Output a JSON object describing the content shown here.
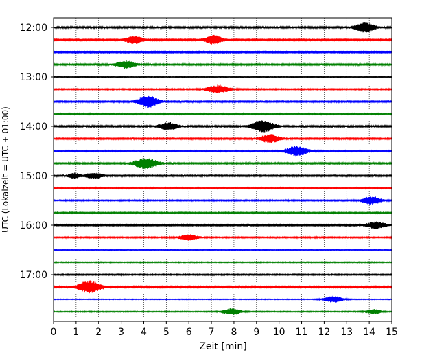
{
  "chart_data": {
    "type": "line",
    "title": "",
    "xlabel": "Zeit  [min]",
    "ylabel": "UTC (Lokalzeit = UTC + 01:00)",
    "xlim": [
      0,
      15
    ],
    "x_ticks": [
      "0",
      "1",
      "2",
      "3",
      "4",
      "5",
      "6",
      "7",
      "8",
      "9",
      "10",
      "11",
      "12",
      "13",
      "14",
      "15"
    ],
    "y_ticks": [
      "12:00",
      "13:00",
      "14:00",
      "15:00",
      "16:00",
      "17:00"
    ],
    "trace_interval_min": 15,
    "grid": "vertical-dotted",
    "series_colors": [
      "#000000",
      "#ff0000",
      "#0000ff",
      "#008000"
    ],
    "series": [
      {
        "name": "12:00",
        "color": "#000000",
        "base_amp": 0.35,
        "events": [
          {
            "t": 13.8,
            "amp": 2.2,
            "dur": 0.5
          }
        ]
      },
      {
        "name": "12:15",
        "color": "#ff0000",
        "base_amp": 0.3,
        "events": [
          {
            "t": 3.6,
            "amp": 1.6,
            "dur": 0.5
          },
          {
            "t": 7.1,
            "amp": 1.9,
            "dur": 0.5
          }
        ]
      },
      {
        "name": "12:30",
        "color": "#0000ff",
        "base_amp": 0.3,
        "events": []
      },
      {
        "name": "12:45",
        "color": "#008000",
        "base_amp": 0.3,
        "events": [
          {
            "t": 3.2,
            "amp": 1.7,
            "dur": 0.5
          }
        ]
      },
      {
        "name": "13:00",
        "color": "#000000",
        "base_amp": 0.2,
        "events": []
      },
      {
        "name": "13:15",
        "color": "#ff0000",
        "base_amp": 0.25,
        "events": [
          {
            "t": 7.3,
            "amp": 1.8,
            "dur": 0.6
          }
        ]
      },
      {
        "name": "13:30",
        "color": "#0000ff",
        "base_amp": 0.3,
        "events": [
          {
            "t": 4.2,
            "amp": 2.6,
            "dur": 0.55
          }
        ]
      },
      {
        "name": "13:45",
        "color": "#008000",
        "base_amp": 0.25,
        "events": []
      },
      {
        "name": "14:00",
        "color": "#000000",
        "base_amp": 0.35,
        "events": [
          {
            "t": 5.1,
            "amp": 1.6,
            "dur": 0.5
          },
          {
            "t": 9.3,
            "amp": 2.6,
            "dur": 0.6
          }
        ]
      },
      {
        "name": "14:15",
        "color": "#ff0000",
        "base_amp": 0.3,
        "events": [
          {
            "t": 9.6,
            "amp": 2.0,
            "dur": 0.5
          }
        ]
      },
      {
        "name": "14:30",
        "color": "#0000ff",
        "base_amp": 0.25,
        "events": [
          {
            "t": 10.8,
            "amp": 2.2,
            "dur": 0.6
          }
        ]
      },
      {
        "name": "14:45",
        "color": "#008000",
        "base_amp": 0.3,
        "events": [
          {
            "t": 4.1,
            "amp": 2.5,
            "dur": 0.6
          }
        ]
      },
      {
        "name": "15:00",
        "color": "#000000",
        "base_amp": 0.3,
        "events": [
          {
            "t": 0.9,
            "amp": 1.3,
            "dur": 0.3
          },
          {
            "t": 1.8,
            "amp": 1.2,
            "dur": 0.5
          }
        ]
      },
      {
        "name": "15:15",
        "color": "#ff0000",
        "base_amp": 0.25,
        "events": []
      },
      {
        "name": "15:30",
        "color": "#0000ff",
        "base_amp": 0.25,
        "events": [
          {
            "t": 14.1,
            "amp": 1.8,
            "dur": 0.5
          }
        ]
      },
      {
        "name": "15:45",
        "color": "#008000",
        "base_amp": 0.25,
        "events": []
      },
      {
        "name": "16:00",
        "color": "#000000",
        "base_amp": 0.3,
        "events": [
          {
            "t": 14.3,
            "amp": 1.6,
            "dur": 0.5
          }
        ]
      },
      {
        "name": "16:15",
        "color": "#ff0000",
        "base_amp": 0.25,
        "events": [
          {
            "t": 6.0,
            "amp": 1.3,
            "dur": 0.5
          }
        ]
      },
      {
        "name": "16:30",
        "color": "#0000ff",
        "base_amp": 0.2,
        "events": []
      },
      {
        "name": "16:45",
        "color": "#008000",
        "base_amp": 0.2,
        "events": []
      },
      {
        "name": "17:00",
        "color": "#000000",
        "base_amp": 0.25,
        "events": []
      },
      {
        "name": "17:15",
        "color": "#ff0000",
        "base_amp": 0.35,
        "events": [
          {
            "t": 1.6,
            "amp": 2.8,
            "dur": 0.6
          }
        ]
      },
      {
        "name": "17:30",
        "color": "#0000ff",
        "base_amp": 0.15,
        "events": [
          {
            "t": 12.4,
            "amp": 1.5,
            "dur": 0.5
          }
        ]
      },
      {
        "name": "17:45",
        "color": "#008000",
        "base_amp": 0.2,
        "events": [
          {
            "t": 7.9,
            "amp": 1.4,
            "dur": 0.5
          },
          {
            "t": 14.2,
            "amp": 1.1,
            "dur": 0.4
          }
        ]
      }
    ]
  }
}
